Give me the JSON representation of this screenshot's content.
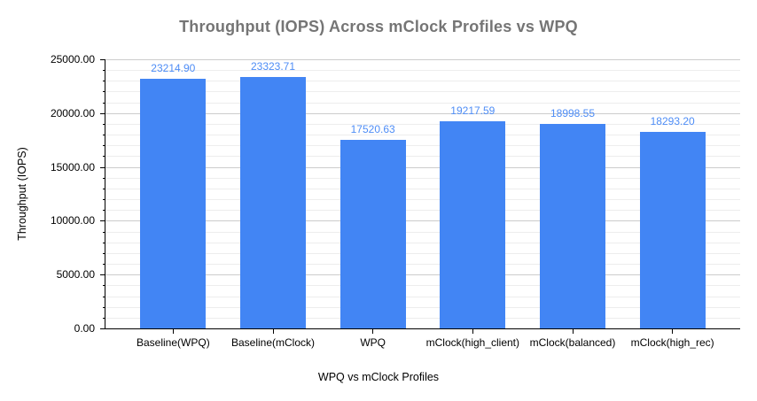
{
  "chart_data": {
    "type": "bar",
    "title": "Throughput (IOPS) Across mClock Profiles vs WPQ",
    "xlabel": "WPQ vs mClock Profiles",
    "ylabel": "Throughput (IOPS)",
    "categories": [
      "Baseline(WPQ)",
      "Baseline(mClock)",
      "WPQ",
      "mClock(high_client)",
      "mClock(balanced)",
      "mClock(high_rec)"
    ],
    "values": [
      23214.9,
      23323.71,
      17520.63,
      19217.59,
      18998.55,
      18293.2
    ],
    "value_label_decimals": 2,
    "ylim": [
      0,
      25000
    ],
    "ytick_step": 5000,
    "ytick_minor_step": 1000,
    "ytick_label_decimals": 2,
    "grid": true,
    "legend": "none",
    "colors": {
      "bar": "#4285f4",
      "value_label": "#4e8df6",
      "title": "#757575",
      "axis_text": "#000000",
      "grid_major": "#cccccc",
      "grid_minor": "#ededed",
      "axis_line": "#000000",
      "background": "#ffffff"
    }
  }
}
